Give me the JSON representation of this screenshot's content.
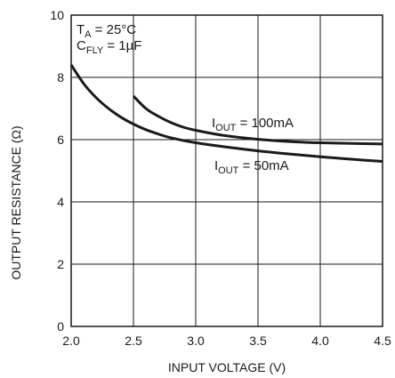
{
  "chart_data": {
    "type": "line",
    "title": "",
    "xlabel": "INPUT VOLTAGE (V)",
    "ylabel": "OUTPUT RESISTANCE (Ω)",
    "xlim": [
      2.0,
      4.5
    ],
    "ylim": [
      0,
      10
    ],
    "x_ticks": [
      2.0,
      2.5,
      3.0,
      3.5,
      4.0,
      4.5
    ],
    "x_tick_labels": [
      "2.0",
      "2.5",
      "3.0",
      "3.5",
      "4.0",
      "4.5"
    ],
    "y_ticks": [
      0,
      2,
      4,
      6,
      8,
      10
    ],
    "y_tick_labels": [
      "0",
      "2",
      "4",
      "6",
      "8",
      "10"
    ],
    "grid": true,
    "conditions": [
      {
        "main": "T",
        "sub": "A",
        "rest": " = 25°C"
      },
      {
        "main": "C",
        "sub": "FLY",
        "rest": " = 1µF"
      }
    ],
    "series": [
      {
        "name_main": "I",
        "name_sub": "OUT",
        "name_rest": " = 100mA",
        "x": [
          2.5,
          2.6,
          2.7,
          2.8,
          2.9,
          3.0,
          3.2,
          3.4,
          3.6,
          3.8,
          4.0,
          4.25,
          4.5
        ],
        "y": [
          7.4,
          7.0,
          6.75,
          6.55,
          6.4,
          6.3,
          6.15,
          6.05,
          5.98,
          5.93,
          5.9,
          5.88,
          5.86
        ]
      },
      {
        "name_main": "I",
        "name_sub": "OUT",
        "name_rest": " = 50mA",
        "x": [
          2.0,
          2.1,
          2.2,
          2.3,
          2.4,
          2.5,
          2.6,
          2.7,
          2.8,
          3.0,
          3.25,
          3.5,
          3.75,
          4.0,
          4.25,
          4.5
        ],
        "y": [
          8.4,
          7.8,
          7.35,
          7.0,
          6.72,
          6.5,
          6.32,
          6.18,
          6.06,
          5.9,
          5.76,
          5.64,
          5.54,
          5.45,
          5.37,
          5.3
        ]
      }
    ]
  }
}
